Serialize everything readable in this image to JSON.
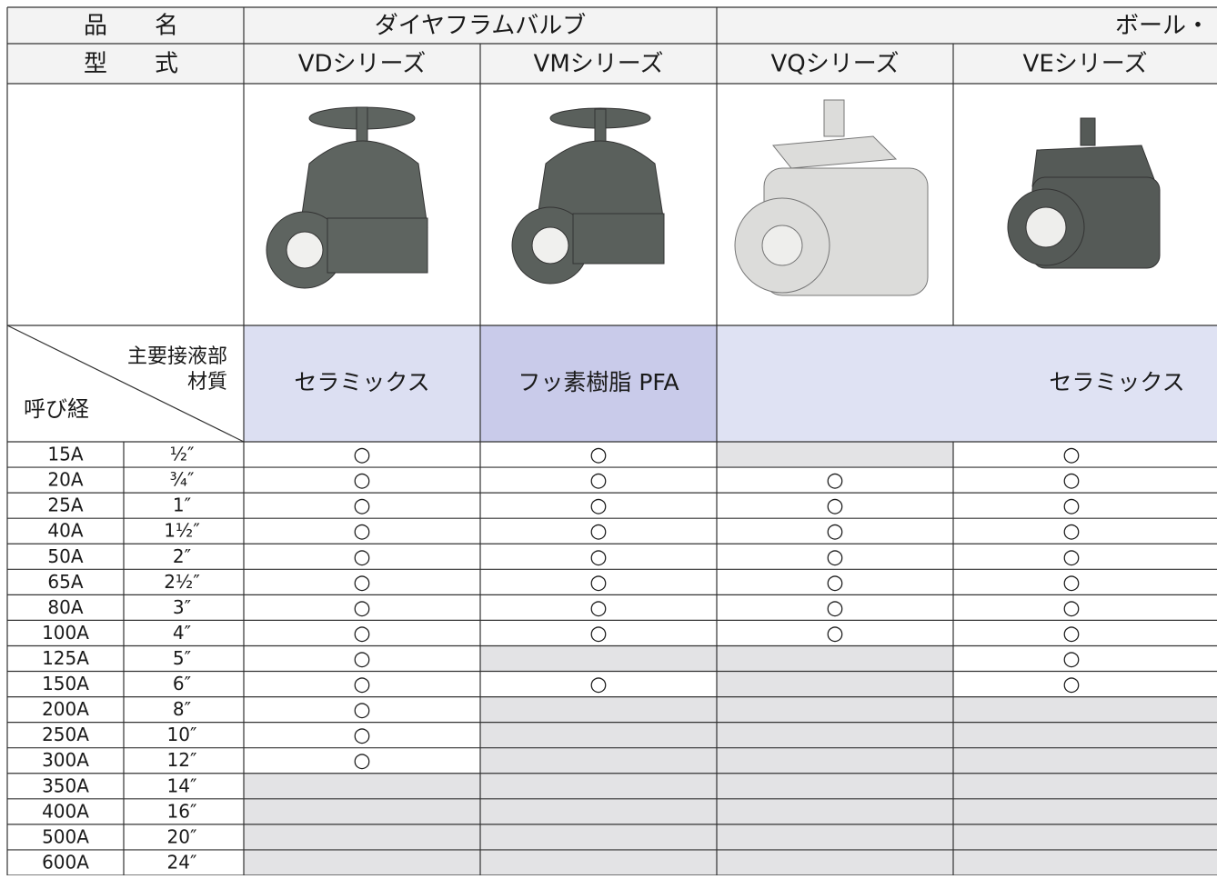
{
  "header": {
    "product_label": "品　　名",
    "type_label": "型　　式",
    "groups": [
      "ダイヤフラムバルブ",
      "ボール・"
    ],
    "series": [
      "VDシリーズ",
      "VMシリーズ",
      "VQシリーズ",
      "VEシリーズ"
    ]
  },
  "material_header": {
    "top": "主要接液部",
    "top2": "材質",
    "bottom": "呼び経"
  },
  "materials": [
    "セラミックス",
    "フッ素樹脂 PFA",
    "セラミックス"
  ],
  "rows": [
    [
      "15A",
      "½″",
      "○",
      "○",
      null,
      "○"
    ],
    [
      "20A",
      "¾″",
      "○",
      "○",
      "○",
      "○"
    ],
    [
      "25A",
      "1″",
      "○",
      "○",
      "○",
      "○"
    ],
    [
      "40A",
      "1½″",
      "○",
      "○",
      "○",
      "○"
    ],
    [
      "50A",
      "2″",
      "○",
      "○",
      "○",
      "○"
    ],
    [
      "65A",
      "2½″",
      "○",
      "○",
      "○",
      "○"
    ],
    [
      "80A",
      "3″",
      "○",
      "○",
      "○",
      "○"
    ],
    [
      "100A",
      "4″",
      "○",
      "○",
      "○",
      "○"
    ],
    [
      "125A",
      "5″",
      "○",
      null,
      null,
      "○"
    ],
    [
      "150A",
      "6″",
      "○",
      "○",
      null,
      "○"
    ],
    [
      "200A",
      "8″",
      "○",
      null,
      null,
      null
    ],
    [
      "250A",
      "10″",
      "○",
      null,
      null,
      null
    ],
    [
      "300A",
      "12″",
      "○",
      null,
      null,
      null
    ],
    [
      "350A",
      "14″",
      null,
      null,
      null,
      null
    ],
    [
      "400A",
      "16″",
      null,
      null,
      null,
      null
    ],
    [
      "500A",
      "20″",
      null,
      null,
      null,
      null
    ],
    [
      "600A",
      "24″",
      null,
      null,
      null,
      null
    ]
  ]
}
